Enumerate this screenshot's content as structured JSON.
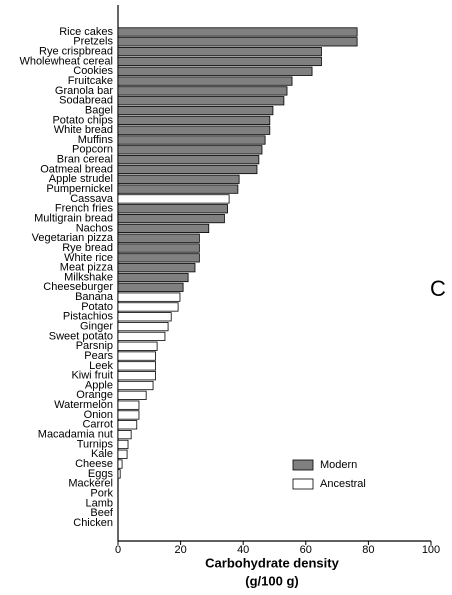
{
  "chart_data": {
    "type": "barh",
    "categories": [
      "Rice cakes",
      "Pretzels",
      "Rye crispbread",
      "Wholewheat cereal",
      "Cookies",
      "Fruitcake",
      "Granola bar",
      "Sodabread",
      "Bagel",
      "Potato chips",
      "White bread",
      "Muffins",
      "Popcorn",
      "Bran cereal",
      "Oatmeal bread",
      "Apple strudel",
      "Pumpernickel",
      "Cassava",
      "French fries",
      "Multigrain bread",
      "Nachos",
      "Vegetarian pizza",
      "Rye bread",
      "White rice",
      "Meat pizza",
      "Milkshake",
      "Cheeseburger",
      "Banana",
      "Potato",
      "Pistachios",
      "Ginger",
      "Sweet potato",
      "Parsnip",
      "Pears",
      "Leek",
      "Kiwi fruit",
      "Apple",
      "Orange",
      "Watermelon",
      "Onion",
      "Carrot",
      "Macadamia nut",
      "Turnips",
      "Kale",
      "Cheese",
      "Eggs",
      "Mackerel",
      "Pork",
      "Lamb",
      "Beef",
      "Chicken"
    ],
    "series": [
      {
        "name": "Modern",
        "color": "#808080",
        "values": [
          76.4,
          76.4,
          65,
          65,
          62,
          55.6,
          54,
          53,
          49.5,
          48.5,
          48.5,
          47,
          46,
          45,
          44.4,
          38.7,
          38.3,
          null,
          35,
          34,
          29,
          26,
          26,
          26,
          24.6,
          22.4,
          20.8,
          null,
          null,
          null,
          null,
          null,
          null,
          null,
          null,
          null,
          null,
          null,
          null,
          null,
          null,
          null,
          null,
          null,
          null,
          null,
          null,
          null,
          null,
          null,
          null
        ]
      },
      {
        "name": "Ancestral",
        "color": "#ffffff",
        "values": [
          null,
          null,
          null,
          null,
          null,
          null,
          null,
          null,
          null,
          null,
          null,
          null,
          null,
          null,
          null,
          null,
          null,
          35.5,
          null,
          null,
          null,
          null,
          null,
          null,
          null,
          null,
          null,
          19.8,
          19.2,
          17,
          16,
          15,
          12.5,
          12,
          12,
          12,
          11.2,
          9,
          6.7,
          6.7,
          6,
          4.2,
          3.2,
          2.9,
          1.3,
          0.7,
          0,
          0,
          0,
          0,
          0
        ]
      }
    ],
    "x_label": [
      "Carbohydrate density",
      "(g/100 g)"
    ],
    "xlim": [
      0,
      100
    ],
    "xticks": [
      0,
      20,
      40,
      60,
      80,
      100
    ],
    "legend": "lower right",
    "panel_label": "C"
  }
}
